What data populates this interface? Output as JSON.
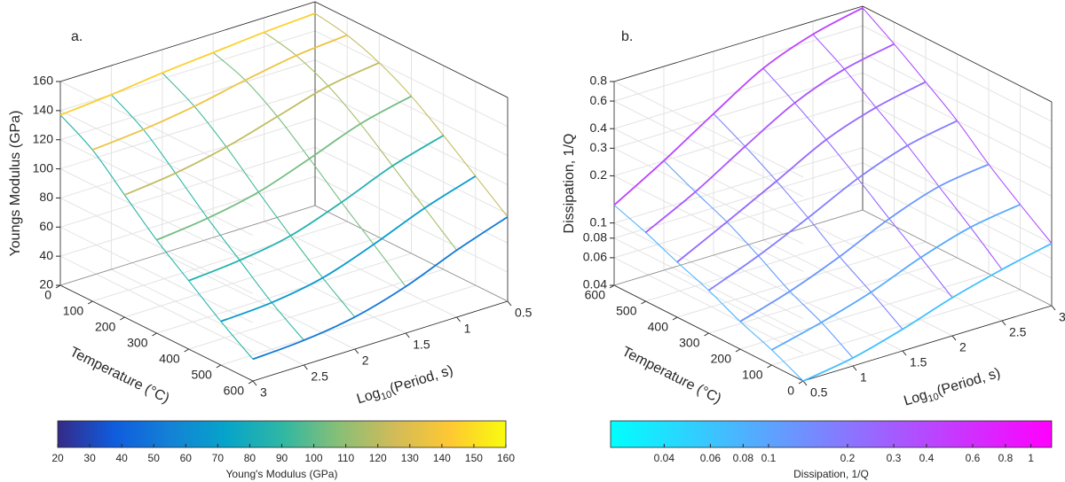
{
  "chart_data": [
    {
      "type": "line3d",
      "label": "a.",
      "zlabel": "Youngs Modulus (GPa)",
      "ylabel": "Temperature (°C)",
      "xlabel": {
        "text": "Log",
        "sub": "10",
        "rest": "(Period, s)"
      },
      "x": [
        0.5,
        1,
        1.5,
        2,
        2.5,
        3
      ],
      "xlim": [
        0.5,
        3
      ],
      "xticks": [
        0.5,
        1,
        1.5,
        2,
        2.5,
        3
      ],
      "ylim": [
        0,
        600
      ],
      "yticks": [
        0,
        100,
        200,
        300,
        400,
        500,
        600
      ],
      "zlim": [
        20,
        160
      ],
      "zticks": [
        20,
        40,
        60,
        80,
        100,
        120,
        140,
        160
      ],
      "grid": true,
      "series": [
        {
          "temperature": 0,
          "values": [
            152,
            150,
            147,
            144,
            140,
            137
          ]
        },
        {
          "temperature": 100,
          "values": [
            148,
            145,
            139,
            132,
            127,
            124
          ]
        },
        {
          "temperature": 200,
          "values": [
            140,
            135,
            125,
            115,
            108,
            104
          ]
        },
        {
          "temperature": 300,
          "values": [
            128,
            120,
            107,
            95,
            88,
            84
          ]
        },
        {
          "temperature": 400,
          "values": [
            112,
            102,
            88,
            76,
            70,
            67
          ]
        },
        {
          "temperature": 500,
          "values": [
            95,
            84,
            70,
            58,
            52,
            50
          ]
        },
        {
          "temperature": 600,
          "values": [
            78,
            66,
            52,
            42,
            37,
            35
          ]
        }
      ],
      "colorbar": {
        "label": "Young's Modulus (GPa)",
        "lim": [
          20,
          160
        ],
        "ticks": [
          20,
          30,
          40,
          50,
          60,
          70,
          80,
          90,
          100,
          110,
          120,
          130,
          140,
          150,
          160
        ],
        "colormap": [
          "#352a87",
          "#0f5cdd",
          "#1481d6",
          "#06a4ca",
          "#2eb7a4",
          "#87bf77",
          "#d1bb59",
          "#fec832",
          "#f9fb0e"
        ]
      }
    },
    {
      "type": "line3d",
      "label": "b.",
      "zlabel": "Dissipation, 1/Q",
      "ylabel": "Temperature (°C)",
      "xlabel": {
        "text": "Log",
        "sub": "10",
        "rest": "(Period, s)"
      },
      "x": [
        0.5,
        1,
        1.5,
        2,
        2.5,
        3
      ],
      "xlim": [
        0.5,
        3
      ],
      "xticks": [
        0.5,
        1,
        1.5,
        2,
        2.5,
        3
      ],
      "ylim": [
        0,
        600
      ],
      "yticks": [
        0,
        100,
        200,
        300,
        400,
        500,
        600
      ],
      "zlim": [
        0.04,
        0.8
      ],
      "zticks": [
        0.04,
        0.06,
        0.08,
        0.1,
        0.2,
        0.3,
        0.4,
        0.6,
        0.8
      ],
      "zlog": true,
      "grid": true,
      "series": [
        {
          "temperature": 0,
          "values": [
            0.04,
            0.045,
            0.055,
            0.07,
            0.085,
            0.1
          ]
        },
        {
          "temperature": 100,
          "values": [
            0.05,
            0.06,
            0.075,
            0.1,
            0.125,
            0.14
          ]
        },
        {
          "temperature": 200,
          "values": [
            0.06,
            0.075,
            0.1,
            0.14,
            0.18,
            0.2
          ]
        },
        {
          "temperature": 300,
          "values": [
            0.075,
            0.1,
            0.14,
            0.2,
            0.26,
            0.3
          ]
        },
        {
          "temperature": 400,
          "values": [
            0.09,
            0.13,
            0.19,
            0.28,
            0.36,
            0.42
          ]
        },
        {
          "temperature": 500,
          "values": [
            0.11,
            0.16,
            0.25,
            0.38,
            0.5,
            0.58
          ]
        },
        {
          "temperature": 600,
          "values": [
            0.13,
            0.2,
            0.32,
            0.5,
            0.66,
            0.78
          ]
        }
      ],
      "colorbar": {
        "label": "Dissipation, 1/Q",
        "lim": [
          0.025,
          1.2
        ],
        "log": true,
        "ticks": [
          0.04,
          0.06,
          0.08,
          0.1,
          0.2,
          0.3,
          0.4,
          0.6,
          0.8,
          1
        ],
        "colormap": [
          "#00ffff",
          "#ff00ff"
        ]
      }
    }
  ]
}
